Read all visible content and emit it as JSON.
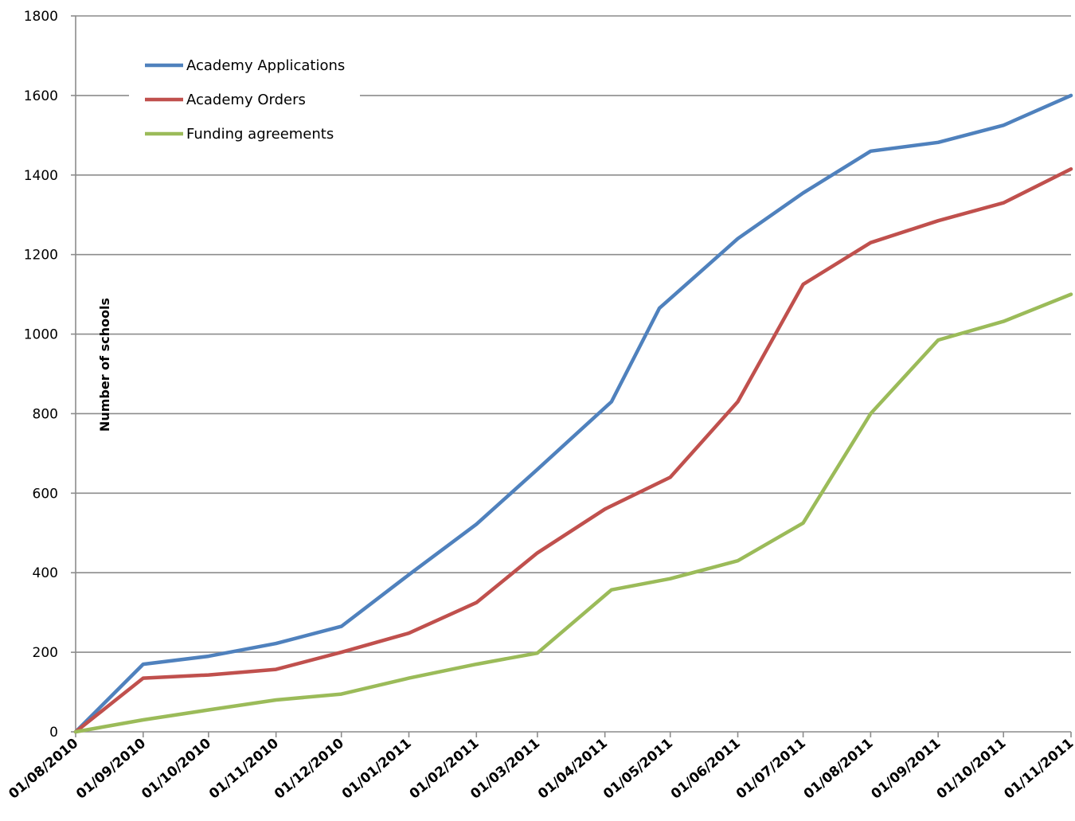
{
  "chart_data": {
    "type": "line",
    "title": "",
    "xlabel": "",
    "ylabel": "Number of schools",
    "ylim": [
      0,
      1800
    ],
    "yticks": [
      0,
      200,
      400,
      600,
      800,
      1000,
      1200,
      1400,
      1600,
      1800
    ],
    "grid": true,
    "legend_position": "top-left",
    "x": [
      "01/08/2010",
      "01/09/2010",
      "01/10/2010",
      "01/11/2010",
      "01/12/2010",
      "01/01/2011",
      "01/02/2011",
      "01/03/2011",
      "01/04/2011",
      "01/05/2011",
      "01/06/2011",
      "01/07/2011",
      "01/08/2011",
      "01/09/2011",
      "01/10/2011",
      "01/11/2011"
    ],
    "series": [
      {
        "name": "Academy Applications",
        "color": "#4f81bd",
        "points": [
          [
            "2010-08-01",
            0
          ],
          [
            "2010-09-01",
            170
          ],
          [
            "2010-10-01",
            190
          ],
          [
            "2010-11-01",
            222
          ],
          [
            "2010-12-01",
            265
          ],
          [
            "2011-01-01",
            395
          ],
          [
            "2011-02-01",
            522
          ],
          [
            "2011-03-01",
            660
          ],
          [
            "2011-04-04",
            830
          ],
          [
            "2011-04-26",
            1065
          ],
          [
            "2011-06-01",
            1240
          ],
          [
            "2011-07-01",
            1355
          ],
          [
            "2011-08-01",
            1460
          ],
          [
            "2011-09-01",
            1482
          ],
          [
            "2011-10-01",
            1525
          ],
          [
            "2011-11-01",
            1600
          ]
        ]
      },
      {
        "name": "Academy Orders",
        "color": "#c0504d",
        "points": [
          [
            "2010-08-01",
            0
          ],
          [
            "2010-09-01",
            135
          ],
          [
            "2010-10-01",
            143
          ],
          [
            "2010-11-01",
            157
          ],
          [
            "2010-12-01",
            200
          ],
          [
            "2011-01-01",
            248
          ],
          [
            "2011-02-01",
            325
          ],
          [
            "2011-03-01",
            450
          ],
          [
            "2011-04-01",
            560
          ],
          [
            "2011-05-01",
            640
          ],
          [
            "2011-06-01",
            830
          ],
          [
            "2011-07-01",
            1125
          ],
          [
            "2011-08-01",
            1230
          ],
          [
            "2011-09-01",
            1285
          ],
          [
            "2011-10-01",
            1330
          ],
          [
            "2011-11-01",
            1415
          ]
        ]
      },
      {
        "name": "Funding agreements",
        "color": "#9bbb59",
        "points": [
          [
            "2010-08-01",
            0
          ],
          [
            "2010-09-01",
            30
          ],
          [
            "2010-10-01",
            55
          ],
          [
            "2010-11-01",
            80
          ],
          [
            "2010-12-01",
            95
          ],
          [
            "2011-01-01",
            135
          ],
          [
            "2011-02-01",
            170
          ],
          [
            "2011-03-01",
            198
          ],
          [
            "2011-04-04",
            357
          ],
          [
            "2011-05-01",
            385
          ],
          [
            "2011-06-01",
            430
          ],
          [
            "2011-07-01",
            525
          ],
          [
            "2011-08-01",
            800
          ],
          [
            "2011-09-01",
            985
          ],
          [
            "2011-10-01",
            1032
          ],
          [
            "2011-11-01",
            1100
          ]
        ]
      }
    ]
  }
}
